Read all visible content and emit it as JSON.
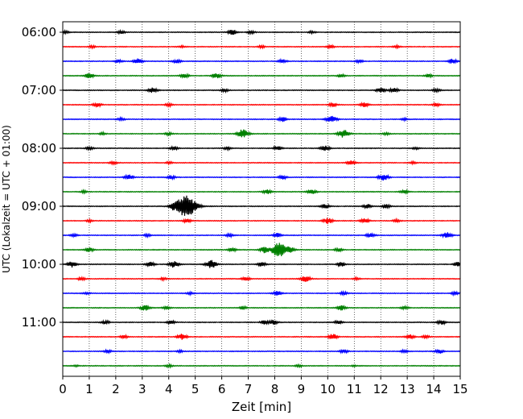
{
  "chart_data": {
    "type": "line",
    "title": "",
    "xlabel": "Zeit  [min]",
    "ylabel": "UTC (Lokalzeit = UTC + 01:00)",
    "xlim": [
      0,
      15
    ],
    "x_ticks": [
      0,
      1,
      2,
      3,
      4,
      5,
      6,
      7,
      8,
      9,
      10,
      11,
      12,
      13,
      14,
      15
    ],
    "y_tick_labels": [
      "06:00",
      "07:00",
      "08:00",
      "09:00",
      "10:00",
      "11:00"
    ],
    "y_tick_rows": [
      0,
      4,
      8,
      12,
      16,
      20
    ],
    "grid": "vertical-dotted",
    "legend": "none",
    "trace_colors": [
      "#000000",
      "#ff0000",
      "#0000ff",
      "#008000"
    ],
    "traces": [
      {
        "start": "06:00",
        "events": [
          [
            0.1,
            0.15
          ],
          [
            2.2,
            0.2
          ],
          [
            6.4,
            0.35
          ],
          [
            7.1,
            0.2
          ],
          [
            9.4,
            0.15
          ]
        ]
      },
      {
        "start": "06:15",
        "events": [
          [
            1.1,
            0.15
          ],
          [
            4.5,
            0.15
          ],
          [
            7.5,
            0.15
          ],
          [
            10.1,
            0.2
          ],
          [
            12.6,
            0.15
          ]
        ]
      },
      {
        "start": "06:30",
        "events": [
          [
            2.1,
            0.2
          ],
          [
            2.85,
            0.35
          ],
          [
            4.3,
            0.25
          ],
          [
            8.3,
            0.25
          ],
          [
            11.2,
            0.2
          ],
          [
            14.7,
            0.3
          ]
        ]
      },
      {
        "start": "06:45",
        "events": [
          [
            1.0,
            0.35
          ],
          [
            4.6,
            0.3
          ],
          [
            5.8,
            0.35
          ],
          [
            10.5,
            0.2
          ],
          [
            13.8,
            0.2
          ]
        ]
      },
      {
        "start": "07:00",
        "events": [
          [
            3.4,
            0.35
          ],
          [
            6.1,
            0.2
          ],
          [
            12.0,
            0.35
          ],
          [
            12.5,
            0.3
          ],
          [
            14.1,
            0.2
          ]
        ]
      },
      {
        "start": "07:15",
        "events": [
          [
            1.3,
            0.3
          ],
          [
            4.0,
            0.2
          ],
          [
            10.2,
            0.25
          ],
          [
            11.4,
            0.3
          ],
          [
            14.1,
            0.2
          ]
        ]
      },
      {
        "start": "07:30",
        "events": [
          [
            2.2,
            0.2
          ],
          [
            8.3,
            0.3
          ],
          [
            10.15,
            0.5
          ],
          [
            12.9,
            0.15
          ]
        ]
      },
      {
        "start": "07:45",
        "events": [
          [
            1.5,
            0.15
          ],
          [
            4.0,
            0.2
          ],
          [
            6.8,
            0.6
          ],
          [
            10.6,
            0.55
          ],
          [
            12.2,
            0.15
          ]
        ]
      },
      {
        "start": "08:00",
        "events": [
          [
            1.0,
            0.2
          ],
          [
            4.2,
            0.25
          ],
          [
            6.2,
            0.2
          ],
          [
            8.1,
            0.3
          ],
          [
            9.9,
            0.35
          ],
          [
            13.3,
            0.15
          ]
        ]
      },
      {
        "start": "08:15",
        "events": [
          [
            1.9,
            0.2
          ],
          [
            4.0,
            0.15
          ],
          [
            10.9,
            0.3
          ],
          [
            13.2,
            0.15
          ]
        ]
      },
      {
        "start": "08:30",
        "events": [
          [
            2.5,
            0.35
          ],
          [
            4.1,
            0.25
          ],
          [
            8.3,
            0.25
          ],
          [
            12.1,
            0.45
          ]
        ]
      },
      {
        "start": "08:45",
        "events": [
          [
            0.8,
            0.15
          ],
          [
            7.7,
            0.3
          ],
          [
            9.4,
            0.35
          ],
          [
            12.9,
            0.25
          ]
        ]
      },
      {
        "start": "09:00",
        "events": [
          [
            4.65,
            1.6
          ],
          [
            4.2,
            0.3
          ],
          [
            9.9,
            0.3
          ],
          [
            11.5,
            0.3
          ],
          [
            12.2,
            0.25
          ]
        ]
      },
      {
        "start": "09:15",
        "events": [
          [
            1.0,
            0.15
          ],
          [
            4.7,
            0.25
          ],
          [
            10.0,
            0.4
          ],
          [
            11.4,
            0.3
          ],
          [
            12.6,
            0.2
          ]
        ]
      },
      {
        "start": "09:30",
        "events": [
          [
            0.4,
            0.2
          ],
          [
            3.2,
            0.2
          ],
          [
            6.3,
            0.2
          ],
          [
            8.1,
            0.3
          ],
          [
            11.6,
            0.3
          ],
          [
            14.5,
            0.4
          ]
        ]
      },
      {
        "start": "09:45",
        "events": [
          [
            1.0,
            0.3
          ],
          [
            6.4,
            0.25
          ],
          [
            8.15,
            1.0
          ],
          [
            7.6,
            0.4
          ],
          [
            8.6,
            0.35
          ],
          [
            10.4,
            0.25
          ]
        ]
      },
      {
        "start": "10:00",
        "events": [
          [
            0.35,
            0.4
          ],
          [
            3.3,
            0.3
          ],
          [
            4.2,
            0.45
          ],
          [
            5.6,
            0.55
          ],
          [
            7.5,
            0.3
          ],
          [
            10.5,
            0.3
          ],
          [
            14.9,
            0.3
          ]
        ]
      },
      {
        "start": "10:15",
        "events": [
          [
            0.7,
            0.2
          ],
          [
            3.8,
            0.15
          ],
          [
            6.9,
            0.25
          ],
          [
            9.15,
            0.45
          ],
          [
            11.1,
            0.15
          ]
        ]
      },
      {
        "start": "10:30",
        "events": [
          [
            0.9,
            0.15
          ],
          [
            4.8,
            0.15
          ],
          [
            8.1,
            0.3
          ],
          [
            10.6,
            0.2
          ],
          [
            14.8,
            0.2
          ]
        ]
      },
      {
        "start": "10:45",
        "events": [
          [
            3.1,
            0.4
          ],
          [
            3.9,
            0.2
          ],
          [
            6.8,
            0.2
          ],
          [
            10.5,
            0.35
          ],
          [
            12.9,
            0.2
          ]
        ]
      },
      {
        "start": "11:00",
        "events": [
          [
            1.6,
            0.25
          ],
          [
            4.1,
            0.25
          ],
          [
            7.6,
            0.25
          ],
          [
            7.95,
            0.3
          ],
          [
            10.4,
            0.25
          ],
          [
            14.3,
            0.3
          ]
        ]
      },
      {
        "start": "11:15",
        "events": [
          [
            2.3,
            0.2
          ],
          [
            4.5,
            0.4
          ],
          [
            10.2,
            0.4
          ],
          [
            13.1,
            0.3
          ],
          [
            13.7,
            0.2
          ]
        ]
      },
      {
        "start": "11:30",
        "events": [
          [
            1.7,
            0.2
          ],
          [
            4.4,
            0.15
          ],
          [
            10.6,
            0.25
          ],
          [
            12.9,
            0.2
          ],
          [
            14.2,
            0.3
          ]
        ]
      },
      {
        "start": "11:45",
        "events": [
          [
            0.5,
            0.1
          ],
          [
            4.0,
            0.15
          ],
          [
            8.9,
            0.15
          ],
          [
            11.0,
            0.1
          ]
        ]
      }
    ]
  }
}
